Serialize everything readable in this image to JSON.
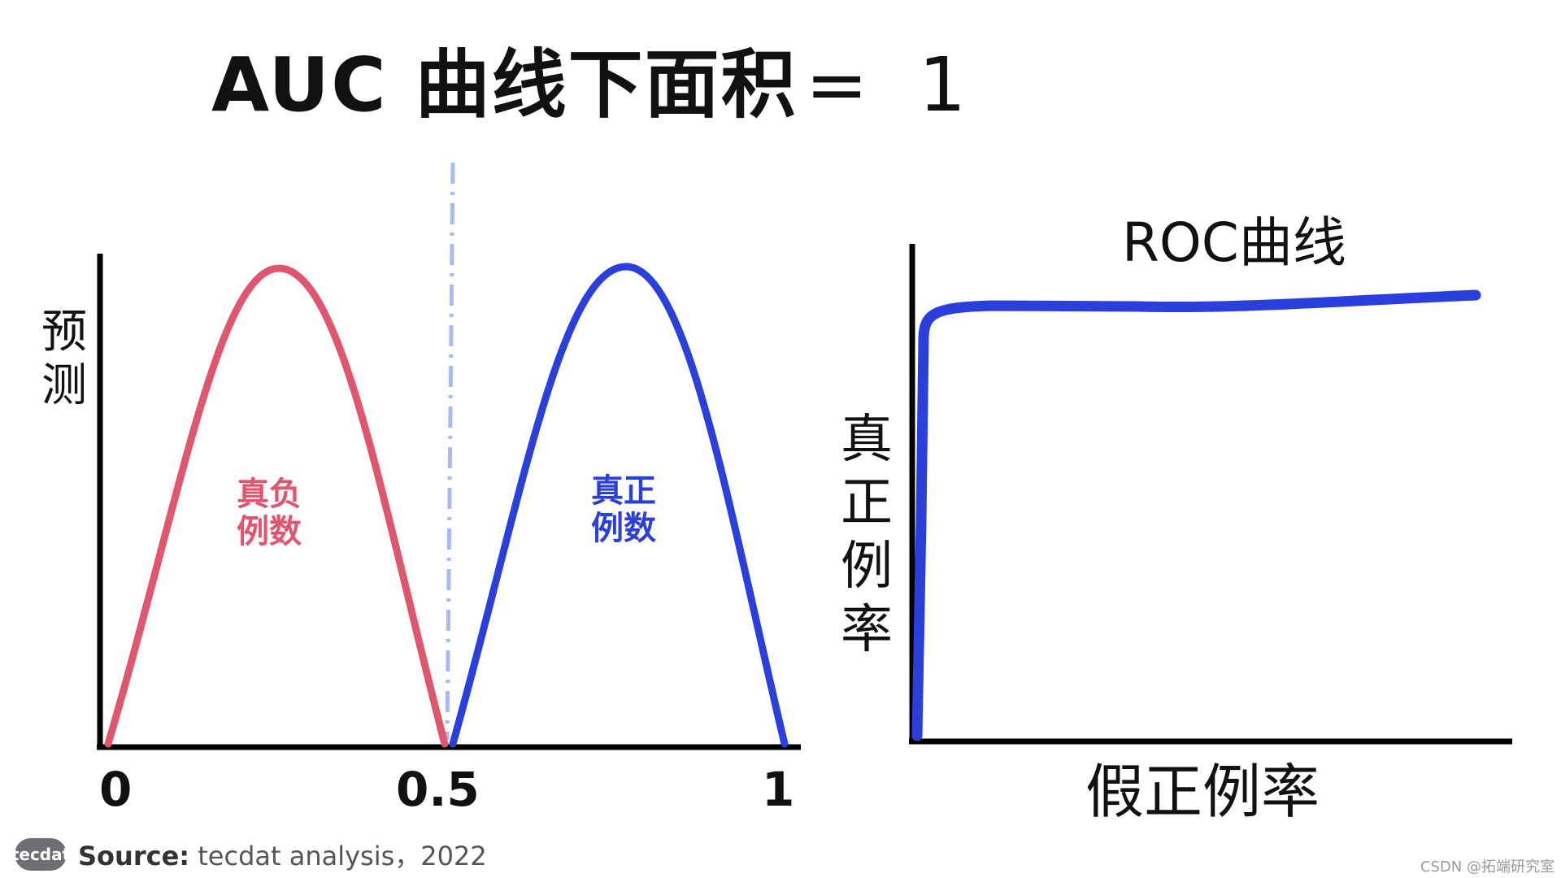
{
  "title": {
    "text": "AUC  曲线下面积",
    "equals": "=",
    "value": "1"
  },
  "left_chart": {
    "y_label": [
      "预",
      "测"
    ],
    "x_ticks": [
      "0",
      "0.5",
      "1"
    ],
    "negative_label": [
      "真负",
      "例数"
    ],
    "positive_label": [
      "真正",
      "例数"
    ],
    "colors": {
      "negative": "#e0566f",
      "positive": "#2a3fdc",
      "threshold": "#aab9f2",
      "axis": "#000000"
    }
  },
  "roc_chart": {
    "title": "ROC曲线",
    "y_label": [
      "真",
      "正",
      "例",
      "率"
    ],
    "x_label": "假正例率",
    "colors": {
      "curve": "#2a3fdc",
      "axis": "#000000"
    }
  },
  "footer": {
    "logo": "tecdat",
    "source_label": "Source:",
    "source_text": " tecdat analysis，2022"
  },
  "watermark": "CSDN @拓端研究室"
}
